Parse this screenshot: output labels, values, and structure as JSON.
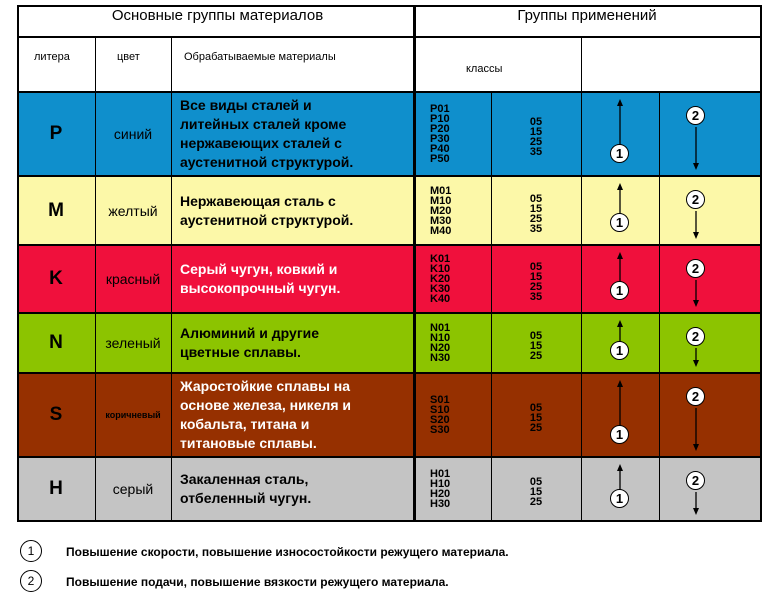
{
  "header": {
    "main_groups": "Основные группы материалов",
    "application_groups": "Группы применений",
    "col_litera": "литера",
    "col_color": "цвет",
    "col_materials": "Обрабатываемые материалы",
    "col_classes": "классы"
  },
  "rows": [
    {
      "litera": "P",
      "color": "синий",
      "bg": "#0f8fcc",
      "text_color": "#000000",
      "materials": [
        "Все виды сталей и",
        "литейных сталей кроме",
        "нержавеющих сталей с",
        "аустенитной структурой."
      ],
      "codes": [
        "P01",
        "P10",
        "P20",
        "P30",
        "P40",
        "P50"
      ],
      "nums": [
        "05",
        "15",
        "25",
        "35"
      ]
    },
    {
      "litera": "M",
      "color": "желтый",
      "bg": "#fcf8a8",
      "text_color": "#000000",
      "materials": [
        "Нержавеющая сталь с",
        "аустенитной структурой."
      ],
      "codes": [
        "M01",
        "M10",
        "M20",
        "M30",
        "M40"
      ],
      "nums": [
        "05",
        "15",
        "25",
        "35"
      ]
    },
    {
      "litera": "K",
      "color": "красный",
      "bg": "#f0103c",
      "text_color": "#ffffff",
      "materials": [
        "Серый чугун, ковкий и",
        "высокопрочный чугун."
      ],
      "codes": [
        "K01",
        "K10",
        "K20",
        "K30",
        "K40"
      ],
      "nums": [
        "05",
        "15",
        "25",
        "35"
      ]
    },
    {
      "litera": "N",
      "color": "зеленый",
      "bg": "#8cc400",
      "text_color": "#000000",
      "materials": [
        "Алюминий и другие",
        "цветные сплавы."
      ],
      "codes": [
        "N01",
        "N10",
        "N20",
        "N30"
      ],
      "nums": [
        "05",
        "15",
        "25"
      ]
    },
    {
      "litera": "S",
      "color": "коричневый",
      "bg": "#963000",
      "text_color": "#ffffff",
      "materials": [
        "Жаростойкие сплавы на",
        "основе железа, никеля и",
        "кобальта, титана и",
        "титановые сплавы."
      ],
      "codes": [
        "S01",
        "S10",
        "S20",
        "S30"
      ],
      "nums": [
        "05",
        "15",
        "25"
      ]
    },
    {
      "litera": "H",
      "color": "серый",
      "bg": "#c4c4c4",
      "text_color": "#000000",
      "materials": [
        "Закаленная сталь,",
        "отбеленный чугун."
      ],
      "codes": [
        "H01",
        "H10",
        "H20",
        "H30"
      ],
      "nums": [
        "05",
        "15",
        "25"
      ]
    }
  ],
  "markers": {
    "one": "1",
    "two": "2"
  },
  "legend": [
    {
      "marker": "1",
      "text": "Повышение скорости, повышение износостойкости режущего материала."
    },
    {
      "marker": "2",
      "text": "Повышение подачи, повышение вязкости режущего материала."
    }
  ]
}
